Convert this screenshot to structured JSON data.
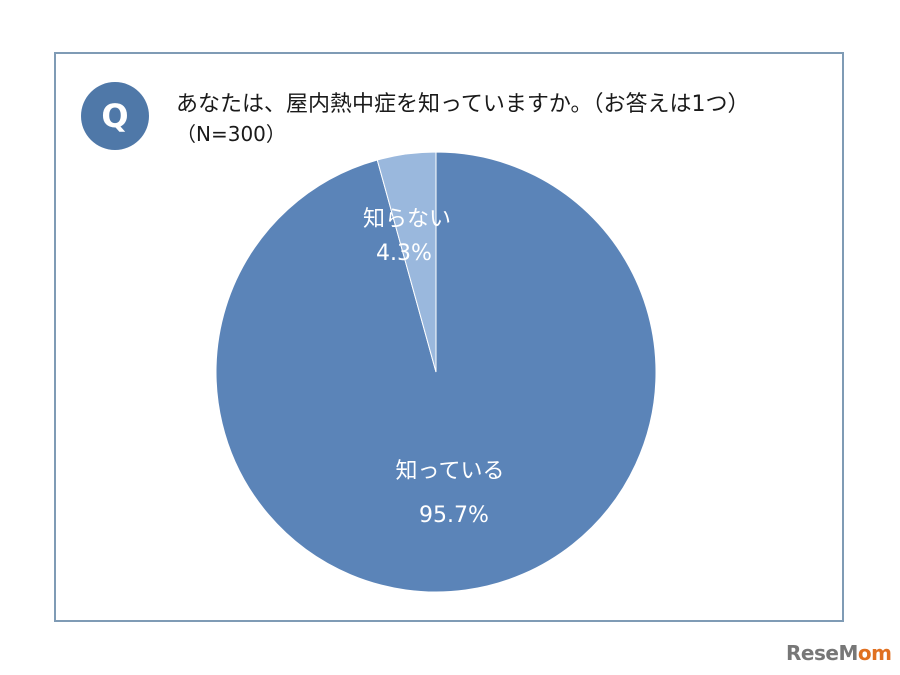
{
  "header": {
    "badge": "Q",
    "question": "あなたは、屋内熱中症を知っていますか。（お答えは1つ）",
    "sample": "（N=300）"
  },
  "chart_data": {
    "type": "pie",
    "title": "あなたは、屋内熱中症を知っていますか。（お答えは1つ）",
    "subtitle": "（N=300）",
    "slices": [
      {
        "label": "知っている",
        "value": 95.7,
        "value_label": "95.7%",
        "color": "#5b84b8"
      },
      {
        "label": "知らない",
        "value": 4.3,
        "value_label": "4.3%",
        "color": "#9ab8dd"
      }
    ],
    "start": "12 o'clock",
    "direction": "clockwise",
    "legend": "none"
  },
  "watermark": {
    "left": "Rese",
    "accent": "M",
    "right": "om"
  }
}
